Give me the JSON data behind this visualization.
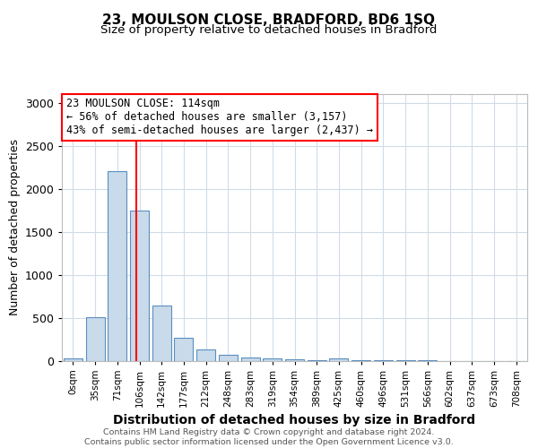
{
  "title1": "23, MOULSON CLOSE, BRADFORD, BD6 1SQ",
  "title2": "Size of property relative to detached houses in Bradford",
  "xlabel": "Distribution of detached houses by size in Bradford",
  "ylabel": "Number of detached properties",
  "categories": [
    "0sqm",
    "35sqm",
    "71sqm",
    "106sqm",
    "142sqm",
    "177sqm",
    "212sqm",
    "248sqm",
    "283sqm",
    "319sqm",
    "354sqm",
    "389sqm",
    "425sqm",
    "460sqm",
    "496sqm",
    "531sqm",
    "566sqm",
    "602sqm",
    "637sqm",
    "673sqm",
    "708sqm"
  ],
  "values": [
    30,
    510,
    2200,
    1750,
    640,
    270,
    135,
    70,
    40,
    25,
    20,
    10,
    30,
    5,
    2,
    1,
    1,
    0,
    0,
    0,
    0
  ],
  "bar_color": "#c9daea",
  "bar_edge_color": "#5a8fc0",
  "vline_color": "red",
  "annotation_line1": "23 MOULSON CLOSE: 114sqm",
  "annotation_line2": "← 56% of detached houses are smaller (3,157)",
  "annotation_line3": "43% of semi-detached houses are larger (2,437) →",
  "ylim": [
    0,
    3100
  ],
  "yticks": [
    0,
    500,
    1000,
    1500,
    2000,
    2500,
    3000
  ],
  "footer": "Contains HM Land Registry data © Crown copyright and database right 2024.\nContains public sector information licensed under the Open Government Licence v3.0.",
  "bg_color": "#ffffff",
  "plot_bg_color": "#ffffff",
  "grid_color": "#d0dce8"
}
